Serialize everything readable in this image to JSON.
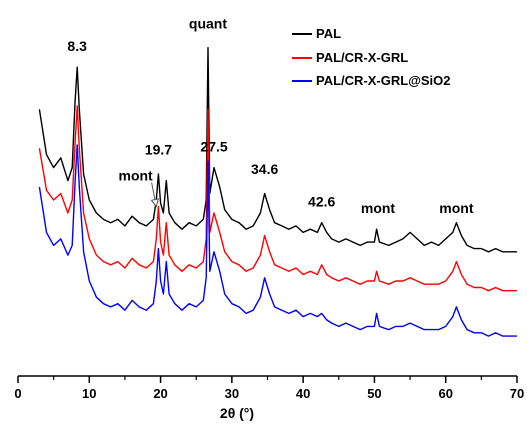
{
  "chart_data": {
    "type": "line",
    "xlabel": "2θ (°)",
    "ylabel": "",
    "xlim": [
      0,
      70
    ],
    "ylim": [
      0,
      100
    ],
    "x_ticks": [
      0,
      10,
      20,
      30,
      40,
      50,
      60,
      70
    ],
    "grid": false,
    "legend": "top-right",
    "series": [
      {
        "name": "PAL",
        "color": "#000000",
        "points": [
          [
            3,
            78
          ],
          [
            4,
            64
          ],
          [
            5,
            60
          ],
          [
            6,
            63
          ],
          [
            7,
            56
          ],
          [
            7.6,
            60
          ],
          [
            8.0,
            80
          ],
          [
            8.3,
            91
          ],
          [
            8.6,
            78
          ],
          [
            9.2,
            58
          ],
          [
            10,
            50
          ],
          [
            11,
            46
          ],
          [
            12,
            44
          ],
          [
            13,
            43
          ],
          [
            14,
            44
          ],
          [
            15,
            42
          ],
          [
            16,
            45
          ],
          [
            17,
            43
          ],
          [
            18,
            42
          ],
          [
            19,
            44
          ],
          [
            19.4,
            50
          ],
          [
            19.7,
            58
          ],
          [
            20.0,
            49
          ],
          [
            20.4,
            46
          ],
          [
            20.8,
            56
          ],
          [
            21.2,
            46
          ],
          [
            22,
            43
          ],
          [
            23,
            41
          ],
          [
            24,
            43
          ],
          [
            25,
            42
          ],
          [
            26,
            44
          ],
          [
            26.4,
            50
          ],
          [
            26.65,
            97
          ],
          [
            26.9,
            52
          ],
          [
            27.5,
            60
          ],
          [
            28.3,
            54
          ],
          [
            29,
            47
          ],
          [
            30,
            44
          ],
          [
            31,
            43
          ],
          [
            32,
            41
          ],
          [
            33,
            42
          ],
          [
            34,
            46
          ],
          [
            34.6,
            52
          ],
          [
            35.3,
            47
          ],
          [
            36,
            43
          ],
          [
            37,
            42
          ],
          [
            38,
            41
          ],
          [
            39,
            42
          ],
          [
            40,
            40
          ],
          [
            41,
            41
          ],
          [
            42,
            40
          ],
          [
            42.6,
            43
          ],
          [
            43.3,
            40
          ],
          [
            44,
            38
          ],
          [
            45,
            37
          ],
          [
            46,
            38
          ],
          [
            47,
            37
          ],
          [
            48,
            36
          ],
          [
            49,
            37
          ],
          [
            50,
            37
          ],
          [
            50.3,
            41
          ],
          [
            50.7,
            37
          ],
          [
            52,
            36
          ],
          [
            53,
            37
          ],
          [
            54,
            38
          ],
          [
            55,
            40
          ],
          [
            56,
            38
          ],
          [
            57,
            36
          ],
          [
            58,
            37
          ],
          [
            59,
            36
          ],
          [
            60,
            38
          ],
          [
            61,
            40
          ],
          [
            61.5,
            43
          ],
          [
            62.2,
            39
          ],
          [
            63,
            36
          ],
          [
            64,
            35
          ],
          [
            65,
            35
          ],
          [
            66,
            34
          ],
          [
            67,
            35
          ],
          [
            68,
            34
          ],
          [
            69,
            34
          ],
          [
            70,
            34
          ]
        ]
      },
      {
        "name": "PAL/CR-X-GRL",
        "color": "#ff0000",
        "points": [
          [
            3,
            66
          ],
          [
            4,
            53
          ],
          [
            5,
            50
          ],
          [
            6,
            52
          ],
          [
            7,
            46
          ],
          [
            7.6,
            50
          ],
          [
            8.0,
            67
          ],
          [
            8.3,
            79
          ],
          [
            8.6,
            66
          ],
          [
            9.2,
            46
          ],
          [
            10,
            38
          ],
          [
            11,
            33
          ],
          [
            12,
            31
          ],
          [
            13,
            30
          ],
          [
            14,
            31
          ],
          [
            15,
            29
          ],
          [
            16,
            32
          ],
          [
            17,
            30
          ],
          [
            18,
            29
          ],
          [
            19,
            31
          ],
          [
            19.4,
            38
          ],
          [
            19.7,
            48
          ],
          [
            20.0,
            37
          ],
          [
            20.4,
            33
          ],
          [
            20.8,
            43
          ],
          [
            21.2,
            33
          ],
          [
            22,
            30
          ],
          [
            23,
            28
          ],
          [
            24,
            30
          ],
          [
            25,
            29
          ],
          [
            26,
            31
          ],
          [
            26.4,
            38
          ],
          [
            26.65,
            78
          ],
          [
            26.9,
            40
          ],
          [
            27.5,
            46
          ],
          [
            28.3,
            40
          ],
          [
            29,
            34
          ],
          [
            30,
            31
          ],
          [
            31,
            30
          ],
          [
            32,
            28
          ],
          [
            33,
            29
          ],
          [
            34,
            33
          ],
          [
            34.6,
            39
          ],
          [
            35.3,
            34
          ],
          [
            36,
            30
          ],
          [
            37,
            29
          ],
          [
            38,
            28
          ],
          [
            39,
            29
          ],
          [
            40,
            27
          ],
          [
            41,
            28
          ],
          [
            42,
            27
          ],
          [
            42.6,
            30
          ],
          [
            43.3,
            27
          ],
          [
            44,
            26
          ],
          [
            45,
            25
          ],
          [
            46,
            26
          ],
          [
            47,
            25
          ],
          [
            48,
            24
          ],
          [
            49,
            25
          ],
          [
            50,
            25
          ],
          [
            50.3,
            28
          ],
          [
            50.7,
            25
          ],
          [
            52,
            24
          ],
          [
            53,
            25
          ],
          [
            54,
            25
          ],
          [
            55,
            26
          ],
          [
            56,
            25
          ],
          [
            57,
            24
          ],
          [
            58,
            24
          ],
          [
            59,
            24
          ],
          [
            60,
            25
          ],
          [
            61,
            28
          ],
          [
            61.5,
            31
          ],
          [
            62.2,
            27
          ],
          [
            63,
            24
          ],
          [
            64,
            23
          ],
          [
            65,
            23
          ],
          [
            66,
            22
          ],
          [
            67,
            23
          ],
          [
            68,
            22
          ],
          [
            69,
            22
          ],
          [
            70,
            22
          ]
        ]
      },
      {
        "name": "PAL/CR-X-GRL@SiO2",
        "color": "#0000ff",
        "points": [
          [
            3,
            54
          ],
          [
            4,
            40
          ],
          [
            5,
            36
          ],
          [
            6,
            38
          ],
          [
            7,
            33
          ],
          [
            7.6,
            36
          ],
          [
            8.0,
            55
          ],
          [
            8.3,
            67
          ],
          [
            8.6,
            54
          ],
          [
            9.2,
            34
          ],
          [
            10,
            25
          ],
          [
            11,
            20
          ],
          [
            12,
            18
          ],
          [
            13,
            17
          ],
          [
            14,
            18
          ],
          [
            15,
            16
          ],
          [
            16,
            19
          ],
          [
            17,
            17
          ],
          [
            18,
            16
          ],
          [
            19,
            18
          ],
          [
            19.4,
            25
          ],
          [
            19.7,
            35
          ],
          [
            20.0,
            25
          ],
          [
            20.4,
            21
          ],
          [
            20.8,
            31
          ],
          [
            21.2,
            21
          ],
          [
            22,
            18
          ],
          [
            23,
            16
          ],
          [
            24,
            18
          ],
          [
            25,
            17
          ],
          [
            26,
            19
          ],
          [
            26.4,
            26
          ],
          [
            26.65,
            62
          ],
          [
            26.9,
            28
          ],
          [
            27.5,
            34
          ],
          [
            28.3,
            28
          ],
          [
            29,
            21
          ],
          [
            30,
            18
          ],
          [
            31,
            17
          ],
          [
            32,
            15
          ],
          [
            33,
            16
          ],
          [
            34,
            20
          ],
          [
            34.6,
            26
          ],
          [
            35.3,
            21
          ],
          [
            36,
            17
          ],
          [
            37,
            16
          ],
          [
            38,
            15
          ],
          [
            39,
            16
          ],
          [
            40,
            14
          ],
          [
            41,
            15
          ],
          [
            42,
            14
          ],
          [
            42.6,
            15
          ],
          [
            43.3,
            13
          ],
          [
            44,
            12
          ],
          [
            45,
            11
          ],
          [
            46,
            12
          ],
          [
            47,
            11
          ],
          [
            48,
            10
          ],
          [
            49,
            11
          ],
          [
            50,
            11
          ],
          [
            50.3,
            15
          ],
          [
            50.7,
            11
          ],
          [
            52,
            10
          ],
          [
            53,
            11
          ],
          [
            54,
            11
          ],
          [
            55,
            12
          ],
          [
            56,
            11
          ],
          [
            57,
            10
          ],
          [
            58,
            10
          ],
          [
            59,
            10
          ],
          [
            60,
            11
          ],
          [
            61,
            14
          ],
          [
            61.5,
            17
          ],
          [
            62.2,
            13
          ],
          [
            63,
            10
          ],
          [
            64,
            9
          ],
          [
            65,
            9
          ],
          [
            66,
            8
          ],
          [
            67,
            9
          ],
          [
            68,
            8
          ],
          [
            69,
            8
          ],
          [
            70,
            8
          ]
        ]
      }
    ],
    "annotations": [
      {
        "text": "8.3",
        "x": 8.3,
        "y": 96
      },
      {
        "text": "quant",
        "x": 26.65,
        "y": 103
      },
      {
        "text": "19.7",
        "x": 19.7,
        "y": 64
      },
      {
        "text": "27.5",
        "x": 27.5,
        "y": 65
      },
      {
        "text": "34.6",
        "x": 34.6,
        "y": 58
      },
      {
        "text": "42.6",
        "x": 42.6,
        "y": 48
      },
      {
        "text": "mont",
        "x": 50.5,
        "y": 46
      },
      {
        "text": "mont",
        "x": 61.5,
        "y": 46
      },
      {
        "text": "mont",
        "x": 16.5,
        "y": 56,
        "arrow_to": [
          19.4,
          48
        ]
      }
    ]
  }
}
